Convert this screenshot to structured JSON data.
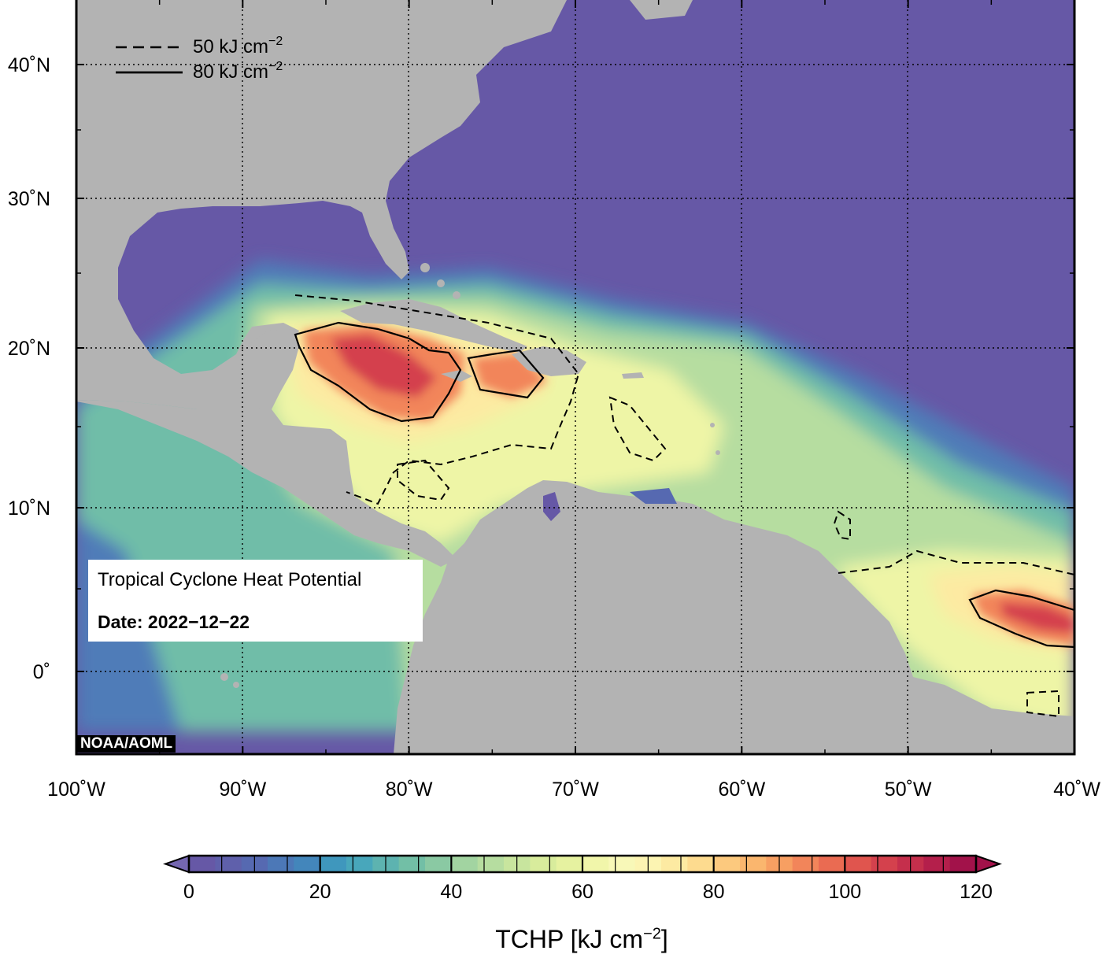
{
  "map": {
    "title": "Tropical Cyclone Heat Potential",
    "date_label": "Date: 2022−12−22",
    "credit": "NOAA/AOML",
    "extent": {
      "lon_min": -100,
      "lon_max": -40,
      "lat_min": -5,
      "lat_max": 44
    },
    "lat_ticks": [
      {
        "value": 40,
        "label": "40˚N"
      },
      {
        "value": 30,
        "label": "30˚N"
      },
      {
        "value": 20,
        "label": "20˚N"
      },
      {
        "value": 10,
        "label": "10˚N"
      },
      {
        "value": 0,
        "label": "0˚"
      }
    ],
    "lon_ticks": [
      {
        "value": -100,
        "label": "100˚W"
      },
      {
        "value": -90,
        "label": "90˚W"
      },
      {
        "value": -80,
        "label": "80˚W"
      },
      {
        "value": -70,
        "label": "70˚W"
      },
      {
        "value": -60,
        "label": "60˚W"
      },
      {
        "value": -50,
        "label": "50˚W"
      },
      {
        "value": -40,
        "label": "40˚W"
      }
    ],
    "contour_legend": [
      {
        "style": "dashed",
        "value": "50",
        "unit": "kJ cm",
        "exp": "−2"
      },
      {
        "style": "solid",
        "value": "80",
        "unit": "kJ cm",
        "exp": "−2"
      }
    ],
    "colors": {
      "ocean_low": "#6658a6",
      "land": "#b3b3b3",
      "hot": "#c8264a"
    }
  },
  "colorbar": {
    "title": "TCHP [kJ cm",
    "title_exp": "−2",
    "title_close": "]",
    "min": 0,
    "max": 120,
    "ticks": [
      {
        "value": 0,
        "label": "0"
      },
      {
        "value": 20,
        "label": "20"
      },
      {
        "value": 40,
        "label": "40"
      },
      {
        "value": 60,
        "label": "60"
      },
      {
        "value": 80,
        "label": "80"
      },
      {
        "value": 100,
        "label": "100"
      },
      {
        "value": 120,
        "label": "120"
      }
    ],
    "colors": [
      "#6658a6",
      "#5f60ab",
      "#5669b1",
      "#4c78b7",
      "#4386bb",
      "#3f97bd",
      "#48a7bb",
      "#5db3b0",
      "#72bfa6",
      "#8ac9a3",
      "#a2d4a1",
      "#b6dda0",
      "#c8e59e",
      "#d8ec9c",
      "#e6f2a0",
      "#f1f6aa",
      "#f8f8b8",
      "#fcf4b2",
      "#fdeaa2",
      "#fddb8f",
      "#fcc97e",
      "#fab66e",
      "#f79f62",
      "#f2855a",
      "#ea6b52",
      "#e0554e",
      "#d4414d",
      "#c52f4c",
      "#b41f4b",
      "#a2124a"
    ],
    "under_color": "#7466b0",
    "over_color": "#a2124a"
  }
}
